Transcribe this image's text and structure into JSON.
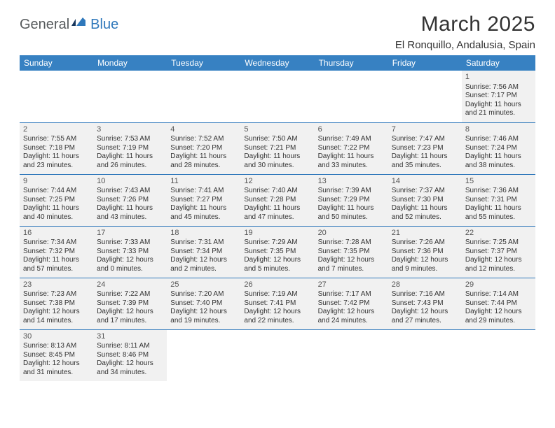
{
  "logo": {
    "word1": "General",
    "word2": "Blue"
  },
  "title": "March 2025",
  "location": "El Ronquillo, Andalusia, Spain",
  "colors": {
    "header_bg": "#3781c2",
    "header_text": "#ffffff",
    "row_border": "#2f78bb",
    "filled_bg": "#f1f1f1",
    "logo_gray": "#565a5c",
    "logo_blue": "#2f78bb"
  },
  "day_headers": [
    "Sunday",
    "Monday",
    "Tuesday",
    "Wednesday",
    "Thursday",
    "Friday",
    "Saturday"
  ],
  "weeks": [
    [
      {
        "n": "",
        "f": false
      },
      {
        "n": "",
        "f": false
      },
      {
        "n": "",
        "f": false
      },
      {
        "n": "",
        "f": false
      },
      {
        "n": "",
        "f": false
      },
      {
        "n": "",
        "f": false
      },
      {
        "n": "1",
        "f": true,
        "sr": "Sunrise: 7:56 AM",
        "ss": "Sunset: 7:17 PM",
        "dl": "Daylight: 11 hours and 21 minutes."
      }
    ],
    [
      {
        "n": "2",
        "f": true,
        "sr": "Sunrise: 7:55 AM",
        "ss": "Sunset: 7:18 PM",
        "dl": "Daylight: 11 hours and 23 minutes."
      },
      {
        "n": "3",
        "f": true,
        "sr": "Sunrise: 7:53 AM",
        "ss": "Sunset: 7:19 PM",
        "dl": "Daylight: 11 hours and 26 minutes."
      },
      {
        "n": "4",
        "f": true,
        "sr": "Sunrise: 7:52 AM",
        "ss": "Sunset: 7:20 PM",
        "dl": "Daylight: 11 hours and 28 minutes."
      },
      {
        "n": "5",
        "f": true,
        "sr": "Sunrise: 7:50 AM",
        "ss": "Sunset: 7:21 PM",
        "dl": "Daylight: 11 hours and 30 minutes."
      },
      {
        "n": "6",
        "f": true,
        "sr": "Sunrise: 7:49 AM",
        "ss": "Sunset: 7:22 PM",
        "dl": "Daylight: 11 hours and 33 minutes."
      },
      {
        "n": "7",
        "f": true,
        "sr": "Sunrise: 7:47 AM",
        "ss": "Sunset: 7:23 PM",
        "dl": "Daylight: 11 hours and 35 minutes."
      },
      {
        "n": "8",
        "f": true,
        "sr": "Sunrise: 7:46 AM",
        "ss": "Sunset: 7:24 PM",
        "dl": "Daylight: 11 hours and 38 minutes."
      }
    ],
    [
      {
        "n": "9",
        "f": true,
        "sr": "Sunrise: 7:44 AM",
        "ss": "Sunset: 7:25 PM",
        "dl": "Daylight: 11 hours and 40 minutes."
      },
      {
        "n": "10",
        "f": true,
        "sr": "Sunrise: 7:43 AM",
        "ss": "Sunset: 7:26 PM",
        "dl": "Daylight: 11 hours and 43 minutes."
      },
      {
        "n": "11",
        "f": true,
        "sr": "Sunrise: 7:41 AM",
        "ss": "Sunset: 7:27 PM",
        "dl": "Daylight: 11 hours and 45 minutes."
      },
      {
        "n": "12",
        "f": true,
        "sr": "Sunrise: 7:40 AM",
        "ss": "Sunset: 7:28 PM",
        "dl": "Daylight: 11 hours and 47 minutes."
      },
      {
        "n": "13",
        "f": true,
        "sr": "Sunrise: 7:39 AM",
        "ss": "Sunset: 7:29 PM",
        "dl": "Daylight: 11 hours and 50 minutes."
      },
      {
        "n": "14",
        "f": true,
        "sr": "Sunrise: 7:37 AM",
        "ss": "Sunset: 7:30 PM",
        "dl": "Daylight: 11 hours and 52 minutes."
      },
      {
        "n": "15",
        "f": true,
        "sr": "Sunrise: 7:36 AM",
        "ss": "Sunset: 7:31 PM",
        "dl": "Daylight: 11 hours and 55 minutes."
      }
    ],
    [
      {
        "n": "16",
        "f": true,
        "sr": "Sunrise: 7:34 AM",
        "ss": "Sunset: 7:32 PM",
        "dl": "Daylight: 11 hours and 57 minutes."
      },
      {
        "n": "17",
        "f": true,
        "sr": "Sunrise: 7:33 AM",
        "ss": "Sunset: 7:33 PM",
        "dl": "Daylight: 12 hours and 0 minutes."
      },
      {
        "n": "18",
        "f": true,
        "sr": "Sunrise: 7:31 AM",
        "ss": "Sunset: 7:34 PM",
        "dl": "Daylight: 12 hours and 2 minutes."
      },
      {
        "n": "19",
        "f": true,
        "sr": "Sunrise: 7:29 AM",
        "ss": "Sunset: 7:35 PM",
        "dl": "Daylight: 12 hours and 5 minutes."
      },
      {
        "n": "20",
        "f": true,
        "sr": "Sunrise: 7:28 AM",
        "ss": "Sunset: 7:35 PM",
        "dl": "Daylight: 12 hours and 7 minutes."
      },
      {
        "n": "21",
        "f": true,
        "sr": "Sunrise: 7:26 AM",
        "ss": "Sunset: 7:36 PM",
        "dl": "Daylight: 12 hours and 9 minutes."
      },
      {
        "n": "22",
        "f": true,
        "sr": "Sunrise: 7:25 AM",
        "ss": "Sunset: 7:37 PM",
        "dl": "Daylight: 12 hours and 12 minutes."
      }
    ],
    [
      {
        "n": "23",
        "f": true,
        "sr": "Sunrise: 7:23 AM",
        "ss": "Sunset: 7:38 PM",
        "dl": "Daylight: 12 hours and 14 minutes."
      },
      {
        "n": "24",
        "f": true,
        "sr": "Sunrise: 7:22 AM",
        "ss": "Sunset: 7:39 PM",
        "dl": "Daylight: 12 hours and 17 minutes."
      },
      {
        "n": "25",
        "f": true,
        "sr": "Sunrise: 7:20 AM",
        "ss": "Sunset: 7:40 PM",
        "dl": "Daylight: 12 hours and 19 minutes."
      },
      {
        "n": "26",
        "f": true,
        "sr": "Sunrise: 7:19 AM",
        "ss": "Sunset: 7:41 PM",
        "dl": "Daylight: 12 hours and 22 minutes."
      },
      {
        "n": "27",
        "f": true,
        "sr": "Sunrise: 7:17 AM",
        "ss": "Sunset: 7:42 PM",
        "dl": "Daylight: 12 hours and 24 minutes."
      },
      {
        "n": "28",
        "f": true,
        "sr": "Sunrise: 7:16 AM",
        "ss": "Sunset: 7:43 PM",
        "dl": "Daylight: 12 hours and 27 minutes."
      },
      {
        "n": "29",
        "f": true,
        "sr": "Sunrise: 7:14 AM",
        "ss": "Sunset: 7:44 PM",
        "dl": "Daylight: 12 hours and 29 minutes."
      }
    ],
    [
      {
        "n": "30",
        "f": true,
        "sr": "Sunrise: 8:13 AM",
        "ss": "Sunset: 8:45 PM",
        "dl": "Daylight: 12 hours and 31 minutes."
      },
      {
        "n": "31",
        "f": true,
        "sr": "Sunrise: 8:11 AM",
        "ss": "Sunset: 8:46 PM",
        "dl": "Daylight: 12 hours and 34 minutes."
      },
      {
        "n": "",
        "f": false
      },
      {
        "n": "",
        "f": false
      },
      {
        "n": "",
        "f": false
      },
      {
        "n": "",
        "f": false
      },
      {
        "n": "",
        "f": false
      }
    ]
  ]
}
